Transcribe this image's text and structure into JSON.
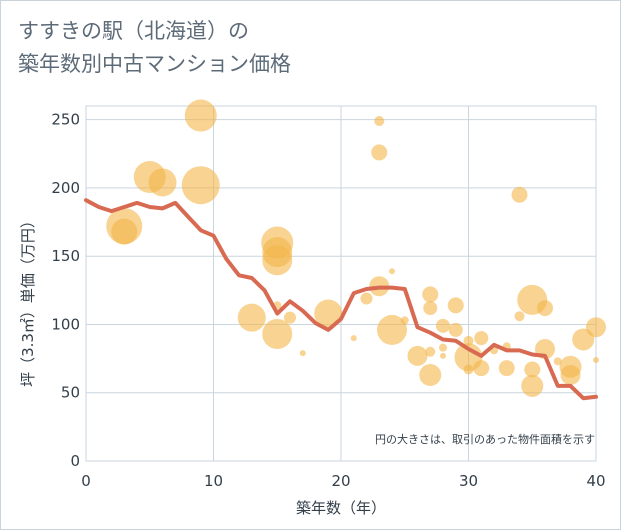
{
  "title": "すすきの駅（北海道）の\n築年数別中古マンション価格",
  "chart_data": {
    "type": "scatter",
    "xlabel": "築年数（年）",
    "ylabel": "坪（3.3㎡）単価（万円）",
    "xlim": [
      0,
      40
    ],
    "ylim": [
      0,
      260
    ],
    "x_ticks": [
      "0",
      "10",
      "20",
      "30",
      "40"
    ],
    "y_ticks": [
      "0",
      "50",
      "100",
      "150",
      "200",
      "250"
    ],
    "grid": true,
    "note": "円の大きさは、取引のあった物件面積を示す",
    "colors": {
      "bubble": "#f4b54a",
      "line": "#d96a52",
      "grid": "#c9d5df"
    },
    "bubbles": [
      {
        "x": 3,
        "y": 172,
        "r": 18
      },
      {
        "x": 3,
        "y": 168,
        "r": 13
      },
      {
        "x": 5,
        "y": 208,
        "r": 16
      },
      {
        "x": 6,
        "y": 204,
        "r": 14
      },
      {
        "x": 9,
        "y": 253,
        "r": 16
      },
      {
        "x": 9,
        "y": 202,
        "r": 19
      },
      {
        "x": 13,
        "y": 105,
        "r": 14
      },
      {
        "x": 15,
        "y": 160,
        "r": 16
      },
      {
        "x": 15,
        "y": 153,
        "r": 15
      },
      {
        "x": 15,
        "y": 147,
        "r": 15
      },
      {
        "x": 15,
        "y": 93,
        "r": 15
      },
      {
        "x": 15,
        "y": 114,
        "r": 4
      },
      {
        "x": 16,
        "y": 105,
        "r": 6
      },
      {
        "x": 17,
        "y": 79,
        "r": 3
      },
      {
        "x": 19,
        "y": 108,
        "r": 14
      },
      {
        "x": 21,
        "y": 90,
        "r": 3
      },
      {
        "x": 22,
        "y": 119,
        "r": 6
      },
      {
        "x": 23,
        "y": 249,
        "r": 5
      },
      {
        "x": 23,
        "y": 226,
        "r": 8
      },
      {
        "x": 23,
        "y": 128,
        "r": 10
      },
      {
        "x": 24,
        "y": 139,
        "r": 3
      },
      {
        "x": 24,
        "y": 96,
        "r": 15
      },
      {
        "x": 25,
        "y": 103,
        "r": 4
      },
      {
        "x": 26,
        "y": 77,
        "r": 10
      },
      {
        "x": 27,
        "y": 122,
        "r": 8
      },
      {
        "x": 27,
        "y": 112,
        "r": 7
      },
      {
        "x": 27,
        "y": 63,
        "r": 11
      },
      {
        "x": 27,
        "y": 80,
        "r": 5
      },
      {
        "x": 28,
        "y": 99,
        "r": 7
      },
      {
        "x": 28,
        "y": 83,
        "r": 4
      },
      {
        "x": 28,
        "y": 77,
        "r": 3
      },
      {
        "x": 29,
        "y": 114,
        "r": 8
      },
      {
        "x": 29,
        "y": 96,
        "r": 7
      },
      {
        "x": 30,
        "y": 88,
        "r": 5
      },
      {
        "x": 30,
        "y": 76,
        "r": 14
      },
      {
        "x": 30,
        "y": 67,
        "r": 5
      },
      {
        "x": 31,
        "y": 90,
        "r": 7
      },
      {
        "x": 31,
        "y": 68,
        "r": 8
      },
      {
        "x": 32,
        "y": 81,
        "r": 4
      },
      {
        "x": 33,
        "y": 84,
        "r": 4
      },
      {
        "x": 33,
        "y": 68,
        "r": 8
      },
      {
        "x": 34,
        "y": 195,
        "r": 8
      },
      {
        "x": 34,
        "y": 106,
        "r": 5
      },
      {
        "x": 35,
        "y": 118,
        "r": 15
      },
      {
        "x": 35,
        "y": 67,
        "r": 8
      },
      {
        "x": 35,
        "y": 55,
        "r": 11
      },
      {
        "x": 36,
        "y": 112,
        "r": 8
      },
      {
        "x": 36,
        "y": 82,
        "r": 10
      },
      {
        "x": 37,
        "y": 73,
        "r": 4
      },
      {
        "x": 38,
        "y": 69,
        "r": 11
      },
      {
        "x": 38,
        "y": 63,
        "r": 10
      },
      {
        "x": 39,
        "y": 89,
        "r": 11
      },
      {
        "x": 40,
        "y": 98,
        "r": 10
      },
      {
        "x": 40,
        "y": 74,
        "r": 3
      }
    ],
    "series": [
      {
        "x": [
          0,
          1,
          2,
          3,
          4,
          5,
          6,
          7,
          8,
          9,
          10,
          11,
          12,
          13,
          14,
          15,
          16,
          17,
          18,
          19,
          20,
          21,
          22,
          23,
          24,
          25,
          26,
          27,
          28,
          29,
          30,
          31,
          32,
          33,
          34,
          35,
          36,
          37,
          38,
          39,
          40
        ],
        "values": [
          191,
          186,
          183,
          186,
          189,
          186,
          185,
          189,
          179,
          169,
          165,
          148,
          136,
          134,
          125,
          108,
          117,
          110,
          101,
          96,
          104,
          123,
          126,
          127,
          127,
          126,
          98,
          94,
          89,
          88,
          82,
          77,
          85,
          81,
          81,
          78,
          77,
          55,
          55,
          46,
          47
        ]
      }
    ]
  }
}
